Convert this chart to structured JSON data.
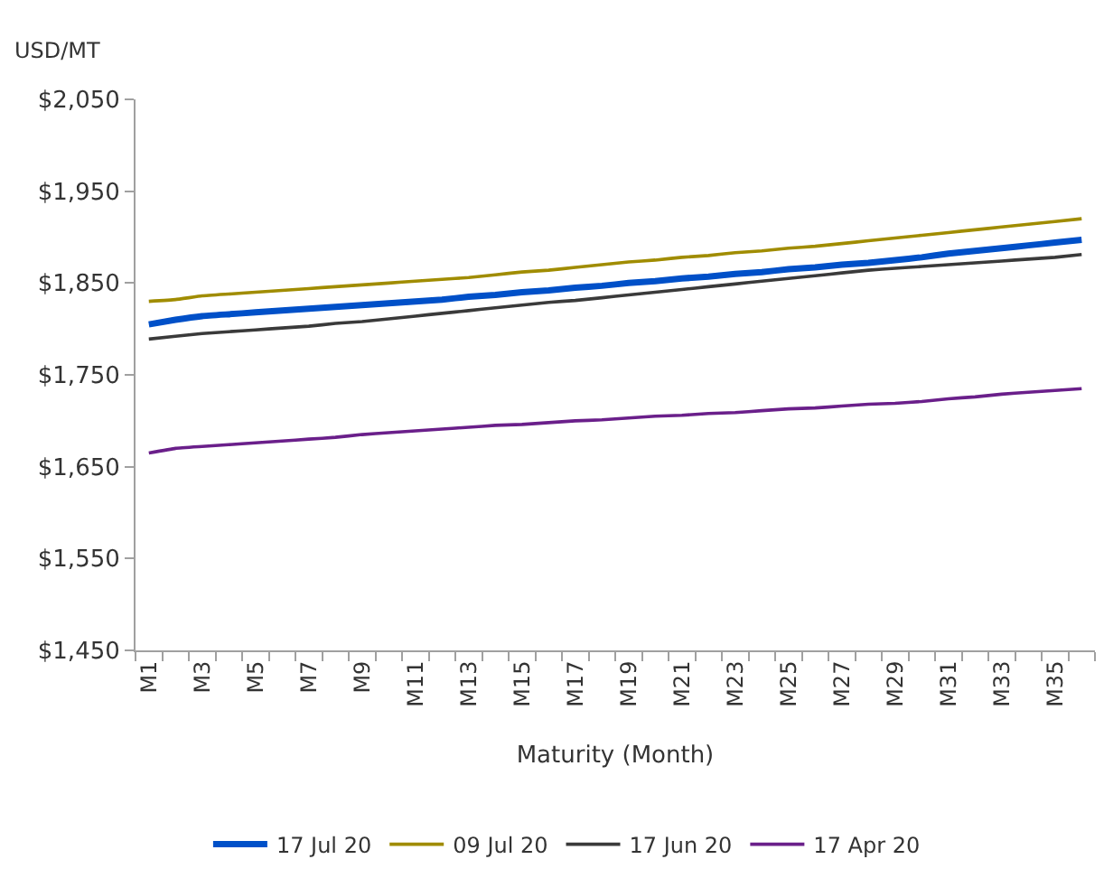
{
  "chart_data": {
    "type": "line",
    "ylabel": "USD/MT",
    "xlabel": "Maturity (Month)",
    "categories": [
      "M1",
      null,
      "M3",
      null,
      "M5",
      null,
      "M7",
      null,
      "M9",
      null,
      "M11",
      null,
      "M13",
      null,
      "M15",
      null,
      "M17",
      null,
      "M19",
      null,
      "M21",
      null,
      "M23",
      null,
      "M25",
      null,
      "M27",
      null,
      "M29",
      null,
      "M31",
      null,
      "M33",
      null,
      "M35",
      null
    ],
    "ylim": [
      1450,
      2050
    ],
    "yticks": [
      {
        "value": 1450,
        "label": "$1,450"
      },
      {
        "value": 1550,
        "label": "$1,550"
      },
      {
        "value": 1650,
        "label": "$1,650"
      },
      {
        "value": 1750,
        "label": "$1,750"
      },
      {
        "value": 1850,
        "label": "$1,850"
      },
      {
        "value": 1950,
        "label": "$1,950"
      },
      {
        "value": 2050,
        "label": "$2,050"
      }
    ],
    "legend": "bottom",
    "marker": "none",
    "line_style": "solid",
    "series": [
      {
        "name": "17 Jul 20",
        "color": "#0050c8",
        "values": [
          1805,
          1810,
          1814,
          1816,
          1818,
          1820,
          1822,
          1824,
          1826,
          1828,
          1830,
          1832,
          1835,
          1837,
          1840,
          1842,
          1845,
          1847,
          1850,
          1852,
          1855,
          1857,
          1860,
          1862,
          1865,
          1867,
          1870,
          1872,
          1875,
          1878,
          1882,
          1885,
          1888,
          1891,
          1894,
          1897
        ]
      },
      {
        "name": "09 Jul 20",
        "color": "#a08c00",
        "values": [
          1830,
          1832,
          1836,
          1838,
          1840,
          1842,
          1844,
          1846,
          1848,
          1850,
          1852,
          1854,
          1856,
          1859,
          1862,
          1864,
          1867,
          1870,
          1873,
          1875,
          1878,
          1880,
          1883,
          1885,
          1888,
          1890,
          1893,
          1896,
          1899,
          1902,
          1905,
          1908,
          1911,
          1914,
          1917,
          1920
        ]
      },
      {
        "name": "17 Jun 20",
        "color": "#3a3a3a",
        "values": [
          1789,
          1792,
          1795,
          1797,
          1799,
          1801,
          1803,
          1806,
          1808,
          1811,
          1814,
          1817,
          1820,
          1823,
          1826,
          1829,
          1831,
          1834,
          1837,
          1840,
          1843,
          1846,
          1849,
          1852,
          1855,
          1858,
          1861,
          1864,
          1866,
          1868,
          1870,
          1872,
          1874,
          1876,
          1878,
          1881
        ]
      },
      {
        "name": "17 Apr 20",
        "color": "#6a1f8a",
        "values": [
          1665,
          1670,
          1672,
          1674,
          1676,
          1678,
          1680,
          1682,
          1685,
          1687,
          1689,
          1691,
          1693,
          1695,
          1696,
          1698,
          1700,
          1701,
          1703,
          1705,
          1706,
          1708,
          1709,
          1711,
          1713,
          1714,
          1716,
          1718,
          1719,
          1721,
          1724,
          1726,
          1729,
          1731,
          1733,
          1735
        ]
      }
    ]
  }
}
